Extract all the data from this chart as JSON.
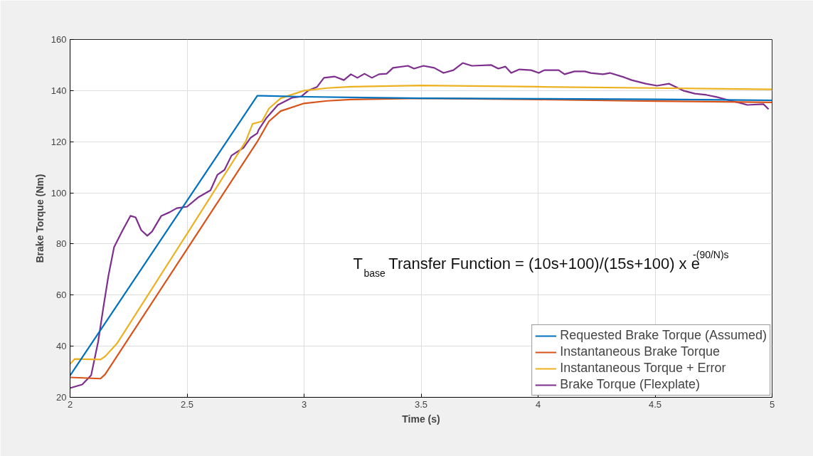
{
  "chart_data": {
    "type": "line",
    "xlabel": "Time (s)",
    "ylabel": "Brake Torque (Nm)",
    "xlim": [
      2,
      5
    ],
    "ylim": [
      20,
      160
    ],
    "xticks": [
      2,
      2.5,
      3,
      3.5,
      4,
      4.5,
      5
    ],
    "yticks": [
      20,
      40,
      60,
      80,
      100,
      120,
      140,
      160
    ],
    "grid": true,
    "legend": "bottom right",
    "line_style": "solid",
    "marker": "none",
    "annotations": [
      "T$_{base}$ Transfer Function = (10s+100)/(15s+100) x e$^{-(90/N)s}$"
    ],
    "series": [
      {
        "name": "Requested Brake Torque (Assumed)",
        "color": "#0072bd",
        "x": [
          2.0,
          2.8,
          2.82,
          3.0,
          3.5,
          4.0,
          4.5,
          5.0
        ],
        "values": [
          28.5,
          138,
          138,
          137.6,
          137,
          136.8,
          136.6,
          136.2
        ]
      },
      {
        "name": "Instantaneous Brake Torque",
        "color": "#d95319",
        "x": [
          2.0,
          2.13,
          2.15,
          2.5,
          2.8,
          2.85,
          2.9,
          3.0,
          3.1,
          3.2,
          3.5,
          4.0,
          4.5,
          5.0
        ],
        "values": [
          27.8,
          27.3,
          29,
          78,
          120,
          128,
          132,
          135,
          136,
          136.5,
          137,
          136.5,
          135.9,
          135.4
        ]
      },
      {
        "name": "Instantaneous Torque + Error",
        "color": "#edb120",
        "x": [
          2.0,
          2.02,
          2.13,
          2.15,
          2.2,
          2.5,
          2.75,
          2.78,
          2.82,
          2.85,
          2.9,
          3.0,
          3.1,
          3.2,
          3.5,
          4.0,
          4.5,
          5.0
        ],
        "values": [
          33,
          35,
          34.8,
          36,
          41,
          84,
          120,
          127,
          128,
          133,
          137,
          140,
          141,
          141.5,
          142,
          141.5,
          141,
          140.5
        ]
      },
      {
        "name": "Brake Torque (Flexplate)",
        "color": "#7e2f8e",
        "x": [
          2.0,
          2.052,
          2.09,
          2.12,
          2.143,
          2.164,
          2.188,
          2.225,
          2.258,
          2.28,
          2.304,
          2.33,
          2.35,
          2.39,
          2.425,
          2.456,
          2.5,
          2.547,
          2.6,
          2.63,
          2.66,
          2.69,
          2.742,
          2.772,
          2.8,
          2.806,
          2.84,
          2.888,
          2.948,
          2.988,
          3.018,
          3.055,
          3.085,
          3.13,
          3.17,
          3.2,
          3.228,
          3.258,
          3.29,
          3.32,
          3.353,
          3.38,
          3.444,
          3.47,
          3.51,
          3.556,
          3.596,
          3.638,
          3.678,
          3.717,
          3.8,
          3.83,
          3.86,
          3.885,
          3.92,
          3.97,
          4.003,
          4.027,
          4.088,
          4.113,
          4.155,
          4.2,
          4.225,
          4.277,
          4.307,
          4.368,
          4.4,
          4.46,
          4.508,
          4.56,
          4.62,
          4.67,
          4.72,
          4.763,
          4.833,
          4.863,
          4.894,
          4.963,
          4.985
        ],
        "values": [
          23.6,
          25,
          28.6,
          41.7,
          55.6,
          67.6,
          78.7,
          85.4,
          91,
          90.4,
          85.4,
          83.2,
          84.8,
          91,
          92.4,
          94,
          94.6,
          98.2,
          101,
          107.1,
          109,
          114.6,
          117.7,
          121.6,
          123.3,
          124.7,
          129.4,
          134.4,
          137.2,
          137.7,
          140,
          141.4,
          145,
          145.5,
          144.1,
          146.4,
          145,
          146.6,
          145,
          146.4,
          146.6,
          148.9,
          149.7,
          148.6,
          149.7,
          148.9,
          146.9,
          148,
          150.8,
          149.7,
          150,
          148.6,
          149.4,
          146.9,
          148.3,
          148,
          146.9,
          148,
          148,
          146.4,
          147.5,
          147.5,
          146.9,
          146.4,
          146.9,
          145.2,
          144.1,
          142.7,
          141.9,
          142.7,
          140,
          138.8,
          138.3,
          137.5,
          135.8,
          135.2,
          134.4,
          134.7,
          132.7
        ]
      }
    ]
  }
}
